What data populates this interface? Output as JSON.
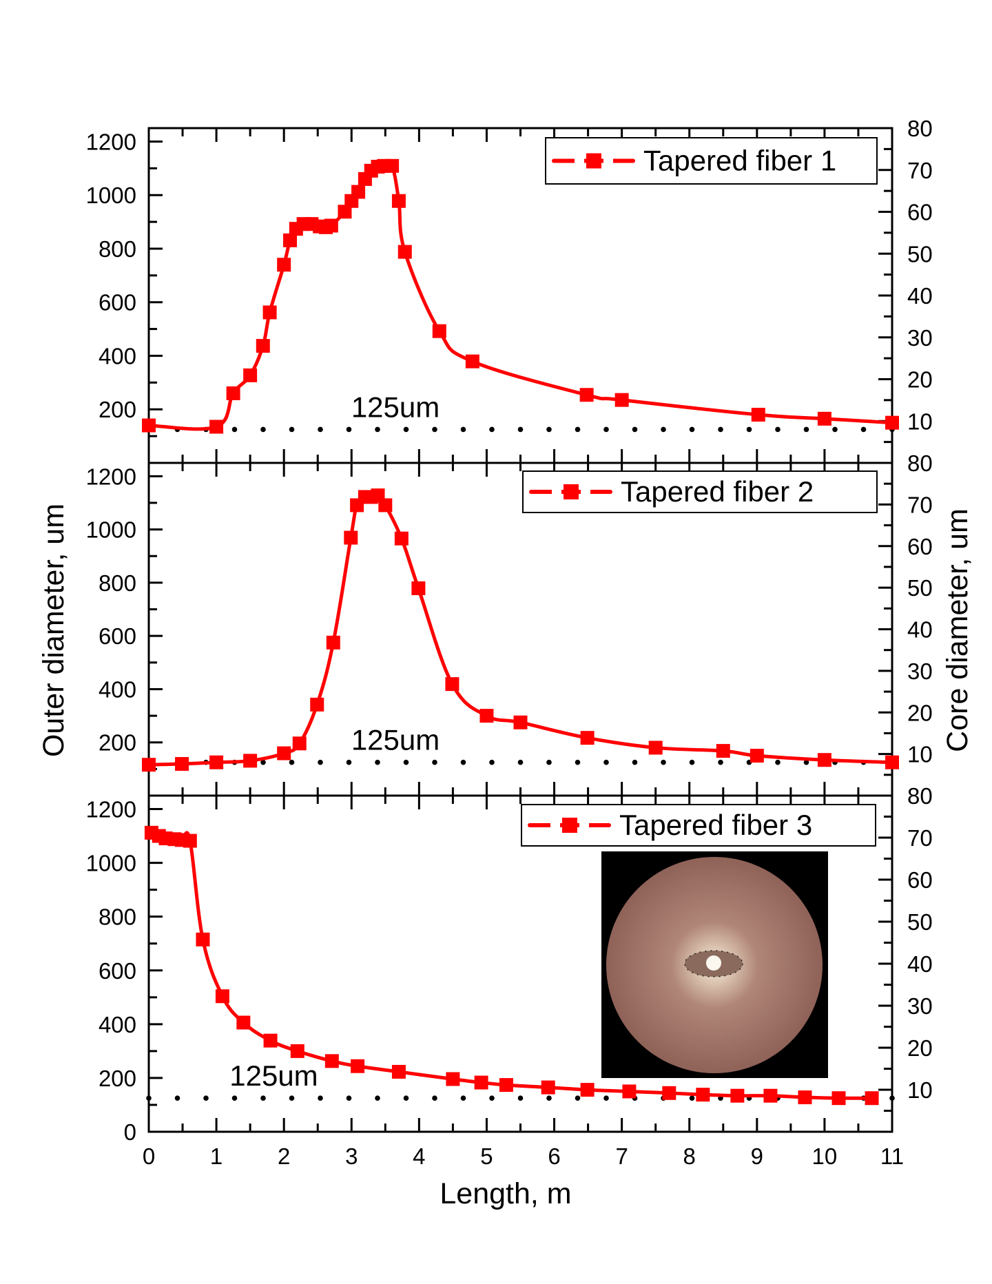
{
  "chart_data": [
    {
      "type": "line",
      "legend": "Tapered fiber 1",
      "legend_position": "top-right",
      "annotation": "125um",
      "reference_line_value": 125,
      "xlim": [
        0,
        11
      ],
      "ylim": [
        0,
        1250
      ],
      "y2lim": [
        0,
        80
      ],
      "yticks": [
        200,
        400,
        600,
        800,
        1000,
        1200
      ],
      "y2ticks": [
        10,
        20,
        30,
        40,
        50,
        60,
        70,
        80
      ],
      "series": [
        {
          "x": [
            0,
            1.0,
            1.25,
            1.5,
            1.69,
            1.79,
            2.0,
            2.09,
            2.18,
            2.29,
            2.41,
            2.53,
            2.62,
            2.7,
            2.9,
            3.0,
            3.1,
            3.2,
            3.29,
            3.39,
            3.48,
            3.6,
            3.7,
            3.79,
            4.3,
            4.79,
            6.48,
            7.0,
            9.02,
            10.0,
            11.0
          ],
          "y": [
            140,
            135,
            260,
            327,
            437,
            562,
            740,
            831,
            874,
            892,
            892,
            883,
            880,
            886,
            938,
            978,
            1012,
            1060,
            1091,
            1106,
            1109,
            1109,
            978,
            788,
            492,
            379,
            254,
            235,
            180,
            165,
            150
          ]
        }
      ]
    },
    {
      "type": "line",
      "legend": "Tapered fiber 2",
      "legend_position": "top-right",
      "annotation": "125um",
      "reference_line_value": 125,
      "xlim": [
        0,
        11
      ],
      "ylim": [
        0,
        1250
      ],
      "y2lim": [
        0,
        80
      ],
      "yticks": [
        200,
        400,
        600,
        800,
        1000,
        1200
      ],
      "y2ticks": [
        10,
        20,
        30,
        40,
        50,
        60,
        70,
        80
      ],
      "series": [
        {
          "x": [
            0,
            0.49,
            1.0,
            1.5,
            2.0,
            2.23,
            2.49,
            2.73,
            2.99,
            3.08,
            3.2,
            3.29,
            3.39,
            3.5,
            3.74,
            3.99,
            4.49,
            5.0,
            5.5,
            6.49,
            7.5,
            8.5,
            9.0,
            10.0,
            11.0
          ],
          "y": [
            116,
            119,
            125,
            131,
            159,
            196,
            342,
            575,
            969,
            1091,
            1122,
            1122,
            1128,
            1091,
            966,
            779,
            419,
            300,
            275,
            217,
            180,
            168,
            150,
            134,
            125
          ]
        }
      ]
    },
    {
      "type": "line",
      "legend": "Tapered fiber 3",
      "legend_position": "top-right",
      "annotation": "125um",
      "reference_line_value": 125,
      "xlim": [
        0,
        11
      ],
      "ylim": [
        0,
        1250
      ],
      "y2lim": [
        0,
        80
      ],
      "yticks": [
        0,
        200,
        400,
        600,
        800,
        1000,
        1200
      ],
      "y2ticks": [
        10,
        20,
        30,
        40,
        50,
        60,
        70,
        80
      ],
      "xticks": [
        0,
        1,
        2,
        3,
        4,
        5,
        6,
        7,
        8,
        9,
        10,
        11
      ],
      "series": [
        {
          "x": [
            0.04,
            0.15,
            0.25,
            0.38,
            0.49,
            0.61,
            0.8,
            1.09,
            1.4,
            1.8,
            2.2,
            2.71,
            3.09,
            3.7,
            4.5,
            4.92,
            5.29,
            5.91,
            6.49,
            7.11,
            7.7,
            8.2,
            8.71,
            9.2,
            9.71,
            10.21,
            10.7
          ],
          "y": [
            1112,
            1100,
            1091,
            1088,
            1085,
            1082,
            715,
            504,
            406,
            339,
            300,
            263,
            244,
            223,
            196,
            183,
            174,
            165,
            156,
            150,
            144,
            138,
            134,
            134,
            128,
            125,
            125
          ]
        }
      ]
    }
  ],
  "axes": {
    "xlabel": "Length, m",
    "ylabel": "Outer diameter, um",
    "y2label": "Core diameter, um"
  },
  "inset": {
    "description_icon": "fiber-cross-section-photo"
  },
  "colors": {
    "series": "#ff0000",
    "axis": "#000000",
    "reference": "#000000"
  }
}
